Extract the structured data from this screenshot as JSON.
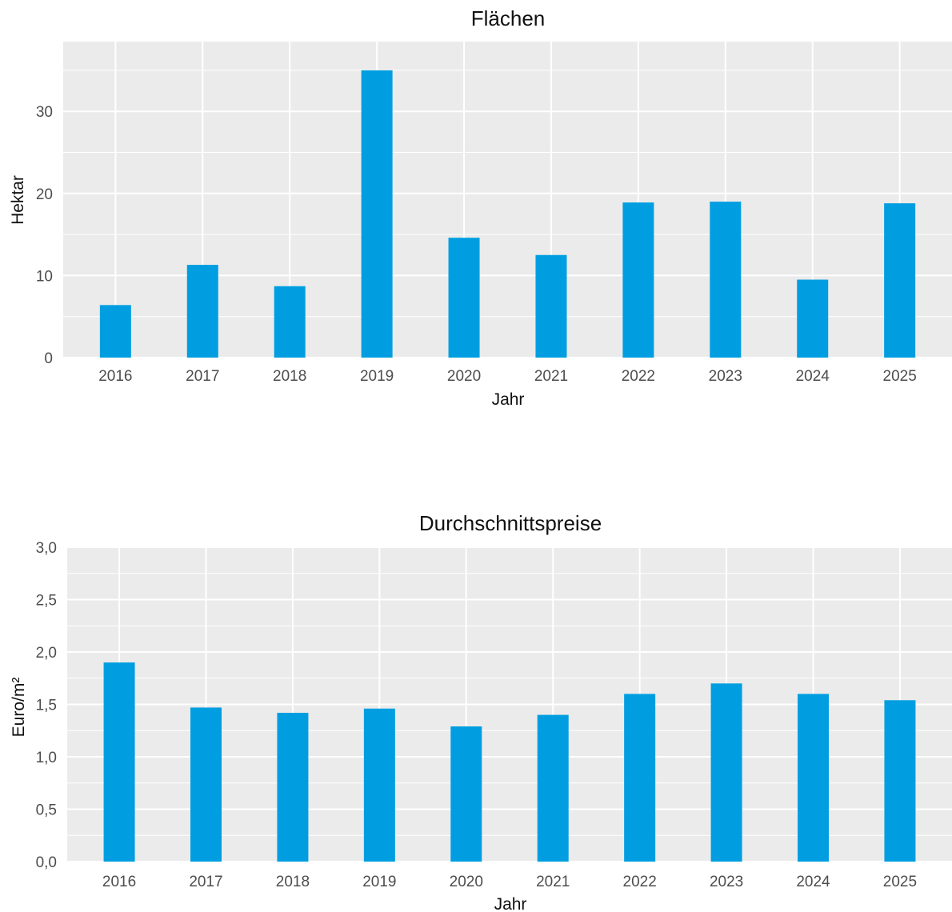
{
  "colors": {
    "bar": "#009ee0",
    "panel": "#ebebeb",
    "grid": "#ffffff"
  },
  "chart_data": [
    {
      "type": "bar",
      "title": "Flächen",
      "xlabel": "Jahr",
      "ylabel": "Hektar",
      "categories": [
        "2016",
        "2017",
        "2018",
        "2019",
        "2020",
        "2021",
        "2022",
        "2023",
        "2024",
        "2025"
      ],
      "values": [
        6.4,
        11.3,
        8.7,
        35.0,
        14.6,
        12.5,
        18.9,
        19.0,
        9.5,
        18.8
      ],
      "ylim": [
        0,
        38.5
      ],
      "yticks": [
        0,
        10,
        20,
        30
      ],
      "ytick_labels": [
        "0",
        "10",
        "20",
        "30"
      ],
      "grid": true,
      "legend": "none"
    },
    {
      "type": "bar",
      "title": "Durchschnittspreise",
      "xlabel": "Jahr",
      "ylabel": "Euro/m²",
      "categories": [
        "2016",
        "2017",
        "2018",
        "2019",
        "2020",
        "2021",
        "2022",
        "2023",
        "2024",
        "2025"
      ],
      "values": [
        1.9,
        1.47,
        1.42,
        1.46,
        1.29,
        1.4,
        1.6,
        1.7,
        1.6,
        1.54
      ],
      "ylim": [
        0,
        3.0
      ],
      "yticks": [
        0,
        0.5,
        1.0,
        1.5,
        2.0,
        2.5,
        3.0
      ],
      "ytick_labels": [
        "0,0",
        "0,5",
        "1,0",
        "1,5",
        "2,0",
        "2,5",
        "3,0"
      ],
      "grid": true,
      "legend": "none"
    }
  ]
}
